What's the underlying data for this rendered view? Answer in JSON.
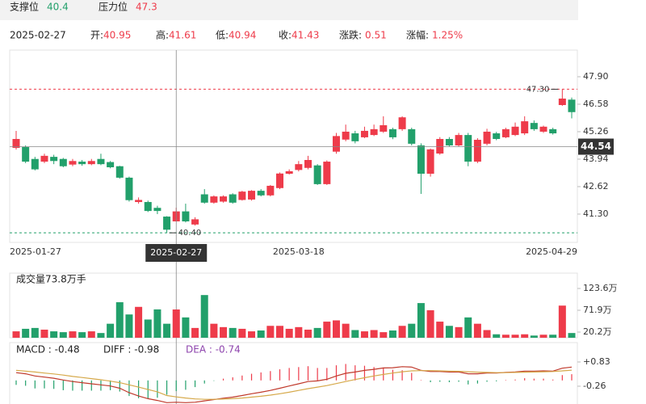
{
  "levels": {
    "support_label": "支撑位",
    "support": 40.4,
    "resistance_label": "压力位",
    "resistance": 47.3
  },
  "quote": {
    "date": "2025-02-27",
    "fields": [
      {
        "label": "开:",
        "value": 40.95
      },
      {
        "label": "高:",
        "value": 41.61
      },
      {
        "label": "低:",
        "value": 40.94
      },
      {
        "label": "收:",
        "value": 41.43
      },
      {
        "label": "涨跌:",
        "value": 0.51
      },
      {
        "label": "涨幅:",
        "value": 1.25,
        "value_label": "1.25%"
      }
    ]
  },
  "chart_data": [
    {
      "type": "candlestick",
      "categories": [
        "2025-01-27",
        null,
        null,
        null,
        null,
        null,
        null,
        null,
        null,
        null,
        null,
        null,
        null,
        null,
        null,
        null,
        null,
        "2025-02-27",
        null,
        null,
        null,
        null,
        null,
        null,
        null,
        null,
        null,
        null,
        null,
        null,
        "2025-03-18",
        null,
        null,
        null,
        null,
        null,
        null,
        null,
        null,
        null,
        null,
        null,
        null,
        null,
        null,
        null,
        null,
        null,
        null,
        null,
        null,
        null,
        null,
        null,
        null,
        null,
        null,
        null,
        null,
        "2025-04-29"
      ],
      "open": [
        44.48,
        44.52,
        43.95,
        43.82,
        44.05,
        43.95,
        43.68,
        43.82,
        43.7,
        43.95,
        43.8,
        43.6,
        43.05,
        41.88,
        41.88,
        41.6,
        41.18,
        40.95,
        41.43,
        40.8,
        42.25,
        41.85,
        41.9,
        42.25,
        41.98,
        42.0,
        42.42,
        42.2,
        42.55,
        43.24,
        43.42,
        43.52,
        43.64,
        42.74,
        44.3,
        44.88,
        45.18,
        44.99,
        45.1,
        45.26,
        45.38,
        45.38,
        45.38,
        44.6,
        43.24,
        44.21,
        44.91,
        44.6,
        45.1,
        43.82,
        44.68,
        45.18,
        44.99,
        45.1,
        45.18,
        45.68,
        45.26,
        45.38,
        46.54,
        46.8
      ],
      "high": [
        45.3,
        44.6,
        44.05,
        44.2,
        44.15,
        44.0,
        43.95,
        43.9,
        43.95,
        44.2,
        43.85,
        43.62,
        43.1,
        42.1,
        41.95,
        41.7,
        41.2,
        41.61,
        41.8,
        41.15,
        42.5,
        42.2,
        42.2,
        42.3,
        42.42,
        42.45,
        42.5,
        42.7,
        43.3,
        43.45,
        43.85,
        44.1,
        43.7,
        43.88,
        45.2,
        45.6,
        45.3,
        45.5,
        45.6,
        46.0,
        45.45,
        46.0,
        45.45,
        44.7,
        44.45,
        45.0,
        45.0,
        45.2,
        45.2,
        44.95,
        45.4,
        45.25,
        45.45,
        45.7,
        46.0,
        45.8,
        45.55,
        45.45,
        47.3,
        46.9
      ],
      "low": [
        44.4,
        43.75,
        43.4,
        43.75,
        43.7,
        43.55,
        43.6,
        43.62,
        43.65,
        43.65,
        43.5,
        43.0,
        41.9,
        41.8,
        41.4,
        41.3,
        40.4,
        40.94,
        40.9,
        40.75,
        41.8,
        41.8,
        41.85,
        41.8,
        41.95,
        41.95,
        42.15,
        42.15,
        42.5,
        43.2,
        43.35,
        43.45,
        42.7,
        42.7,
        44.2,
        44.8,
        44.7,
        44.95,
        45.05,
        45.2,
        44.9,
        45.3,
        44.6,
        42.27,
        43.1,
        44.15,
        44.55,
        44.55,
        43.6,
        43.75,
        44.6,
        44.85,
        44.95,
        45.05,
        45.1,
        45.3,
        45.2,
        45.12,
        46.5,
        45.9
      ],
      "close": [
        44.91,
        43.82,
        43.45,
        44.1,
        43.85,
        43.6,
        43.85,
        43.7,
        43.85,
        43.7,
        43.55,
        43.05,
        41.97,
        41.98,
        41.45,
        41.45,
        40.55,
        41.43,
        40.95,
        41.05,
        41.85,
        42.15,
        42.15,
        41.85,
        42.38,
        42.42,
        42.2,
        42.66,
        43.25,
        43.36,
        43.7,
        43.9,
        42.74,
        43.82,
        45.05,
        45.26,
        44.8,
        45.3,
        45.38,
        45.57,
        44.99,
        45.95,
        44.68,
        43.24,
        44.41,
        44.91,
        44.6,
        45.1,
        43.82,
        44.87,
        45.26,
        44.91,
        45.38,
        45.5,
        45.76,
        45.38,
        45.5,
        45.18,
        46.85,
        46.2
      ],
      "up_color": "#ee3b4a",
      "down_color": "#22a06b",
      "ylim": [
        39.94,
        49.18
      ],
      "yticks": [
        {
          "value": 47.9,
          "label": "47.90"
        },
        46.58,
        45.26,
        43.94,
        42.62,
        {
          "value": 41.3,
          "label": "41.30"
        }
      ],
      "grid": false,
      "reference_lines": [
        {
          "value": 47.3,
          "label": "47.30",
          "color": "#ee3b4a"
        },
        {
          "value": 40.4,
          "label": "40.40",
          "color": "#22a06b"
        }
      ],
      "crosshair": {
        "value": 44.54
      }
    },
    {
      "type": "bar",
      "title": "成交量73.8万手",
      "values": [
        22,
        28,
        30,
        26,
        22,
        20,
        22,
        20,
        22,
        18,
        40,
        91,
        62,
        80,
        50,
        74,
        40,
        73.8,
        55,
        30,
        108,
        40,
        32,
        30,
        28,
        22,
        24,
        35,
        35,
        28,
        32,
        26,
        30,
        45,
        48,
        40,
        25,
        22,
        25,
        20,
        24,
        35,
        40,
        89,
        72,
        45,
        35,
        32,
        55,
        40,
        25,
        15,
        14,
        14,
        15,
        12,
        14,
        14,
        83,
        18
      ],
      "ylim": [
        6.8,
        156.2
      ],
      "yticks": [
        {
          "value": 123.6,
          "label": "123.6万"
        },
        {
          "value": 71.9,
          "label": "71.9万"
        },
        {
          "value": 20.2,
          "label": "20.2万"
        }
      ]
    },
    {
      "type": "macd",
      "series": [
        {
          "name": "MACD : -0.48",
          "label_color": "#222222",
          "up_color": "#ee3b4a",
          "down_color": "#22a06b",
          "values": [
            -0.2,
            -0.24,
            -0.36,
            -0.36,
            -0.38,
            -0.44,
            -0.46,
            -0.46,
            -0.46,
            -0.46,
            -0.44,
            -0.5,
            -0.7,
            -0.8,
            -0.82,
            -0.78,
            -0.64,
            -0.48,
            -0.42,
            -0.3,
            -0.14,
            -0.02,
            0.08,
            0.14,
            0.22,
            0.3,
            0.36,
            0.42,
            0.5,
            0.56,
            0.6,
            0.64,
            0.56,
            0.56,
            0.68,
            0.74,
            0.68,
            0.66,
            0.6,
            0.58,
            0.48,
            0.46,
            0.34,
            0.02,
            -0.08,
            -0.06,
            -0.08,
            -0.06,
            -0.18,
            -0.14,
            -0.06,
            -0.04,
            0.02,
            0.04,
            0.1,
            0.08,
            0.08,
            0.04,
            0.24,
            0.28
          ]
        },
        {
          "name": "DIFF : -0.98",
          "label_color": "#222222",
          "color": "#c0392b",
          "values": [
            0.35,
            0.3,
            0.2,
            0.15,
            0.1,
            0.02,
            -0.05,
            -0.1,
            -0.15,
            -0.2,
            -0.25,
            -0.35,
            -0.55,
            -0.7,
            -0.82,
            -0.9,
            -1.0,
            -0.98,
            -1.0,
            -0.98,
            -0.92,
            -0.86,
            -0.8,
            -0.75,
            -0.68,
            -0.6,
            -0.53,
            -0.45,
            -0.35,
            -0.25,
            -0.15,
            -0.05,
            -0.02,
            0.05,
            0.2,
            0.32,
            0.38,
            0.45,
            0.5,
            0.56,
            0.57,
            0.62,
            0.6,
            0.45,
            0.4,
            0.4,
            0.38,
            0.38,
            0.3,
            0.3,
            0.33,
            0.33,
            0.36,
            0.38,
            0.42,
            0.42,
            0.43,
            0.42,
            0.55,
            0.6
          ]
        },
        {
          "name": "DEA : -0.74",
          "label_color": "#8e44ad",
          "color": "#d6a94a",
          "values": [
            0.45,
            0.42,
            0.38,
            0.33,
            0.29,
            0.24,
            0.18,
            0.13,
            0.08,
            0.03,
            -0.03,
            -0.1,
            -0.2,
            -0.3,
            -0.41,
            -0.51,
            -0.68,
            -0.74,
            -0.79,
            -0.83,
            -0.85,
            -0.85,
            -0.84,
            -0.82,
            -0.79,
            -0.75,
            -0.71,
            -0.66,
            -0.6,
            -0.53,
            -0.45,
            -0.37,
            -0.3,
            -0.23,
            -0.14,
            -0.05,
            0.04,
            0.12,
            0.2,
            0.27,
            0.33,
            0.39,
            0.43,
            0.44,
            0.44,
            0.43,
            0.42,
            0.41,
            0.39,
            0.37,
            0.36,
            0.35,
            0.35,
            0.36,
            0.37,
            0.38,
            0.39,
            0.4,
            0.43,
            0.46
          ]
        }
      ],
      "ylim": [
        -1.06,
        1.12
      ],
      "yticks": [
        {
          "value": 0.83,
          "label": "+0.83"
        },
        -0.26
      ]
    }
  ]
}
